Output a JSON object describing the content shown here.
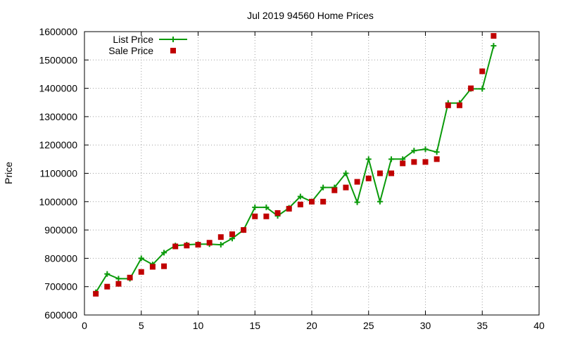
{
  "chart_data": {
    "type": "line",
    "title": "Jul 2019 94560 Home Prices",
    "xlabel": "",
    "ylabel": "Price",
    "xlim": [
      0,
      40
    ],
    "ylim": [
      600000,
      1600000
    ],
    "xticks": [
      0,
      5,
      10,
      15,
      20,
      25,
      30,
      35,
      40
    ],
    "yticks": [
      600000,
      700000,
      800000,
      900000,
      1000000,
      1100000,
      1200000,
      1300000,
      1400000,
      1500000,
      1600000
    ],
    "grid": true,
    "legend_position": "top-left",
    "series": [
      {
        "name": "List Price",
        "style": "line-plus",
        "color": "#0a9a0a",
        "points": [
          [
            1,
            680000
          ],
          [
            2,
            745000
          ],
          [
            3,
            728000
          ],
          [
            4,
            728000
          ],
          [
            5,
            800000
          ],
          [
            6,
            778000
          ],
          [
            7,
            820000
          ],
          [
            8,
            845000
          ],
          [
            9,
            848000
          ],
          [
            10,
            850000
          ],
          [
            11,
            850000
          ],
          [
            12,
            848000
          ],
          [
            13,
            870000
          ],
          [
            14,
            900000
          ],
          [
            15,
            980000
          ],
          [
            16,
            980000
          ],
          [
            17,
            950000
          ],
          [
            18,
            978000
          ],
          [
            19,
            1018000
          ],
          [
            20,
            1000000
          ],
          [
            21,
            1050000
          ],
          [
            22,
            1050000
          ],
          [
            23,
            1100000
          ],
          [
            24,
            998000
          ],
          [
            25,
            1150000
          ],
          [
            26,
            1000000
          ],
          [
            27,
            1150000
          ],
          [
            28,
            1150000
          ],
          [
            29,
            1180000
          ],
          [
            30,
            1185000
          ],
          [
            31,
            1175000
          ],
          [
            32,
            1348000
          ],
          [
            33,
            1348000
          ],
          [
            34,
            1398000
          ],
          [
            35,
            1398000
          ],
          [
            36,
            1550000
          ]
        ]
      },
      {
        "name": "Sale Price",
        "style": "square-markers",
        "color": "#c00000",
        "points": [
          [
            1,
            675000
          ],
          [
            2,
            700000
          ],
          [
            3,
            710000
          ],
          [
            4,
            732000
          ],
          [
            5,
            752000
          ],
          [
            6,
            770000
          ],
          [
            7,
            772000
          ],
          [
            8,
            842000
          ],
          [
            9,
            845000
          ],
          [
            10,
            848000
          ],
          [
            11,
            855000
          ],
          [
            12,
            875000
          ],
          [
            13,
            885000
          ],
          [
            14,
            900000
          ],
          [
            15,
            948000
          ],
          [
            16,
            948000
          ],
          [
            17,
            960000
          ],
          [
            18,
            975000
          ],
          [
            19,
            990000
          ],
          [
            20,
            1000000
          ],
          [
            21,
            1000000
          ],
          [
            22,
            1040000
          ],
          [
            23,
            1050000
          ],
          [
            24,
            1070000
          ],
          [
            25,
            1082000
          ],
          [
            26,
            1100000
          ],
          [
            27,
            1100000
          ],
          [
            28,
            1135000
          ],
          [
            29,
            1140000
          ],
          [
            30,
            1140000
          ],
          [
            31,
            1150000
          ],
          [
            32,
            1340000
          ],
          [
            33,
            1340000
          ],
          [
            34,
            1400000
          ],
          [
            35,
            1460000
          ],
          [
            36,
            1585000
          ]
        ]
      }
    ]
  }
}
